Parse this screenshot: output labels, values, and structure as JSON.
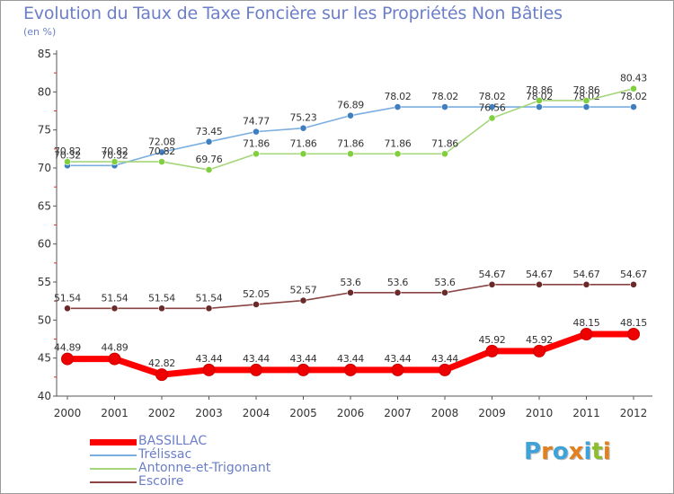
{
  "title": "Evolution du Taux de Taxe Foncière sur les Propriétés Non Bâties",
  "unit_label": "(en %)",
  "logo": {
    "text": "Proxiti",
    "colors": [
      "#3fa2d8",
      "#e2801f",
      "#3fa2d8",
      "#e2801f",
      "#3fa2d8",
      "#8bbf2e",
      "#e2801f"
    ]
  },
  "chart_data": {
    "type": "line",
    "title": "Evolution du Taux de Taxe Foncière sur les Propriétés Non Bâties",
    "ylabel": "(en %)",
    "xlabel": "",
    "ylim": [
      40,
      85
    ],
    "yticks": [
      40,
      45,
      50,
      55,
      60,
      65,
      70,
      75,
      80,
      85
    ],
    "grid": false,
    "x": [
      "2000",
      "2001",
      "2002",
      "2003",
      "2004",
      "2005",
      "2006",
      "2007",
      "2008",
      "2009",
      "2010",
      "2011",
      "2012"
    ],
    "series": [
      {
        "name": "BASSILLAC",
        "color": "#ff0000",
        "point_color": "#cc0000",
        "bold": true,
        "values": [
          44.89,
          44.89,
          42.82,
          43.44,
          43.44,
          43.44,
          43.44,
          43.44,
          43.44,
          45.92,
          45.92,
          48.15,
          48.15
        ],
        "labels": [
          "44.89",
          "44.89",
          "42.82",
          "43.44",
          "43.44",
          "43.44",
          "43.44",
          "43.44",
          "43.44",
          "45.92",
          "45.92",
          "48.15",
          "48.15"
        ]
      },
      {
        "name": "Trélissac",
        "color": "#7aaee0",
        "point_color": "#3f7fbf",
        "bold": false,
        "values": [
          70.32,
          70.32,
          72.08,
          73.45,
          74.77,
          75.23,
          76.89,
          78.02,
          78.02,
          78.02,
          78.02,
          78.02,
          78.02
        ],
        "labels": [
          "70.32",
          "70.32",
          "72.08",
          "73.45",
          "74.77",
          "75.23",
          "76.89",
          "78.02",
          "78.02",
          "78.02",
          "78.02",
          "78.02",
          "78.02"
        ]
      },
      {
        "name": "Antonne-et-Trigonant",
        "color": "#a5d67a",
        "point_color": "#7fcf3f",
        "bold": false,
        "values": [
          70.82,
          70.82,
          70.82,
          69.76,
          71.86,
          71.86,
          71.86,
          71.86,
          71.86,
          76.56,
          78.86,
          78.86,
          80.43
        ],
        "labels": [
          "70.82",
          "70.82",
          "70.82",
          "69.76",
          "71.86",
          "71.86",
          "71.86",
          "71.86",
          "71.86",
          "76.56",
          "78.86",
          "78.86",
          "80.43"
        ]
      },
      {
        "name": "Escoire",
        "color": "#8a4444",
        "point_color": "#6a2a2a",
        "bold": false,
        "values": [
          51.54,
          51.54,
          51.54,
          51.54,
          52.05,
          52.57,
          53.6,
          53.6,
          53.6,
          54.67,
          54.67,
          54.67,
          54.67
        ],
        "labels": [
          "51.54",
          "51.54",
          "51.54",
          "51.54",
          "52.05",
          "52.57",
          "53.6",
          "53.6",
          "53.6",
          "54.67",
          "54.67",
          "54.67",
          "54.67"
        ]
      }
    ],
    "legend_position": "bottom-left"
  }
}
